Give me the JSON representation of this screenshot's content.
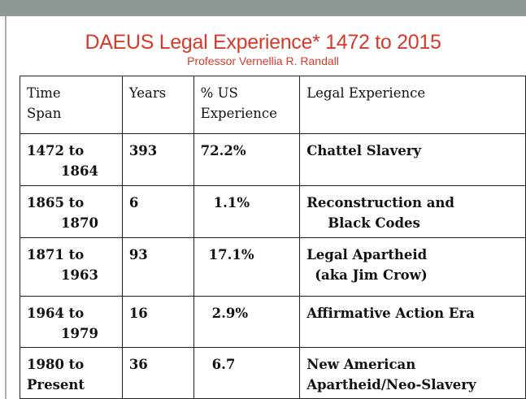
{
  "slide": {
    "title": "DAEUS  Legal Experience*  1472  to 2015",
    "subtitle": "Professor Vernellia  R. Randall"
  },
  "table": {
    "headers": {
      "col1_line1": "Time",
      "col1_line2": "Span",
      "col2": "Years",
      "col3_line1": "% US",
      "col3_line2": "Experience",
      "col4": "Legal  Experience"
    },
    "rows": [
      {
        "span_from": "1472 to",
        "span_to": "1864",
        "years": "393",
        "percent": "72.2%",
        "experience_line1": "Chattel Slavery",
        "experience_line2": ""
      },
      {
        "span_from": "1865 to",
        "span_to": "1870",
        "years": "6",
        "percent": "1.1%",
        "experience_line1": "Reconstruction  and",
        "experience_line2": "Black Codes"
      },
      {
        "span_from": "1871 to",
        "span_to": "1963",
        "years": "93",
        "percent": "17.1%",
        "experience_line1": "Legal Apartheid",
        "experience_line2": "(aka Jim Crow)"
      },
      {
        "span_from": "1964 to",
        "span_to": "1979",
        "years": "16",
        "percent": "2.9%",
        "experience_line1": "Affirmative Action Era",
        "experience_line2": ""
      },
      {
        "span_from": "1980 to",
        "span_to": "Present",
        "years": "36",
        "percent": "6.7",
        "experience_line1": "New American",
        "experience_line2": "Apartheid/Neo-Slavery"
      }
    ]
  }
}
